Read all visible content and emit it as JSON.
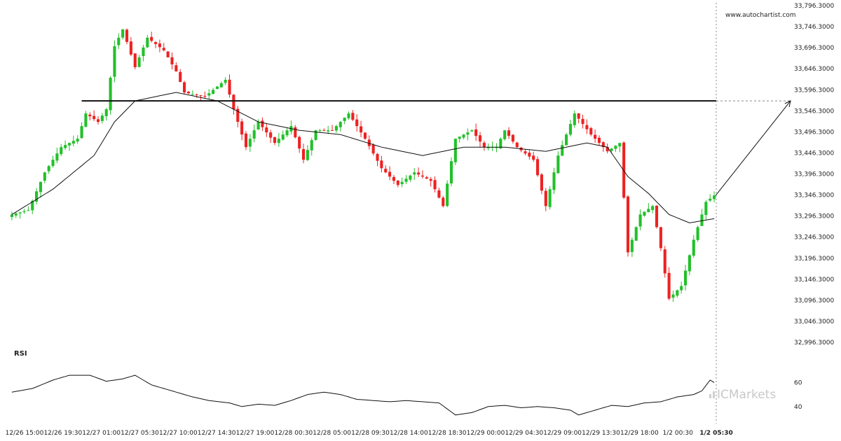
{
  "watermark": "www.autochartist.com",
  "brand": {
    "prefix": "IC",
    "suffix": "Markets"
  },
  "colors": {
    "up": "#22c02a",
    "down": "#ee2222",
    "line": "#111111",
    "guide": "#888888",
    "text": "#222222"
  },
  "chart_data": [
    {
      "type": "candlestick",
      "series_name": "",
      "resistance_level": 33570,
      "projected_target": 33570,
      "ylim": [
        32996.3,
        33796.3
      ],
      "y_ticks": [
        "33,796.3000",
        "33,746.3000",
        "33,696.3000",
        "33,646.3000",
        "33,596.3000",
        "33,546.3000",
        "33,496.3000",
        "33,446.3000",
        "33,396.3000",
        "33,346.3000",
        "33,296.3000",
        "33,246.3000",
        "33,196.3000",
        "33,146.3000",
        "33,096.3000",
        "33,046.3000",
        "32,996.3000"
      ],
      "x_ticks": [
        "12/26 15:00",
        "12/26 19:30",
        "12/27 01:00",
        "12/27 05:30",
        "12/27 10:00",
        "12/27 14:30",
        "12/27 19:00",
        "12/28 00:30",
        "12/28 05:00",
        "12/28 09:30",
        "12/28 14:00",
        "12/28 18:30",
        "12/29 00:00",
        "12/29 04:30",
        "12/29 09:00",
        "12/29 13:30",
        "12/29 18:00",
        "1/2 00:30",
        "1/2 05:30"
      ],
      "current_label": "1/2 05:30",
      "anchors": [
        [
          0,
          33300
        ],
        [
          4,
          33310
        ],
        [
          8,
          33400
        ],
        [
          12,
          33460
        ],
        [
          16,
          33480
        ],
        [
          18,
          33540
        ],
        [
          21,
          33520
        ],
        [
          23,
          33550
        ],
        [
          25,
          33700
        ],
        [
          27,
          33740
        ],
        [
          30,
          33650
        ],
        [
          33,
          33720
        ],
        [
          37,
          33690
        ],
        [
          40,
          33640
        ],
        [
          42,
          33590
        ],
        [
          47,
          33580
        ],
        [
          52,
          33620
        ],
        [
          54,
          33550
        ],
        [
          57,
          33460
        ],
        [
          60,
          33520
        ],
        [
          64,
          33470
        ],
        [
          68,
          33510
        ],
        [
          71,
          33430
        ],
        [
          74,
          33500
        ],
        [
          78,
          33500
        ],
        [
          82,
          33540
        ],
        [
          86,
          33480
        ],
        [
          90,
          33410
        ],
        [
          94,
          33370
        ],
        [
          98,
          33400
        ],
        [
          102,
          33380
        ],
        [
          105,
          33320
        ],
        [
          108,
          33480
        ],
        [
          112,
          33500
        ],
        [
          115,
          33460
        ],
        [
          118,
          33460
        ],
        [
          120,
          33500
        ],
        [
          123,
          33460
        ],
        [
          127,
          33430
        ],
        [
          130,
          33320
        ],
        [
          133,
          33440
        ],
        [
          137,
          33540
        ],
        [
          141,
          33490
        ],
        [
          145,
          33450
        ],
        [
          148,
          33470
        ],
        [
          150,
          33210
        ],
        [
          153,
          33300
        ],
        [
          156,
          33320
        ],
        [
          158,
          33220
        ],
        [
          160,
          33100
        ],
        [
          163,
          33130
        ],
        [
          166,
          33240
        ],
        [
          169,
          33330
        ],
        [
          171,
          33345
        ]
      ],
      "ma_anchors": [
        [
          0,
          33300
        ],
        [
          10,
          33360
        ],
        [
          20,
          33440
        ],
        [
          25,
          33520
        ],
        [
          30,
          33570
        ],
        [
          40,
          33590
        ],
        [
          50,
          33570
        ],
        [
          60,
          33520
        ],
        [
          70,
          33500
        ],
        [
          80,
          33490
        ],
        [
          90,
          33460
        ],
        [
          100,
          33440
        ],
        [
          110,
          33460
        ],
        [
          120,
          33460
        ],
        [
          130,
          33450
        ],
        [
          140,
          33470
        ],
        [
          145,
          33460
        ],
        [
          150,
          33390
        ],
        [
          155,
          33350
        ],
        [
          160,
          33300
        ],
        [
          165,
          33280
        ],
        [
          171,
          33290
        ]
      ],
      "rsi": {
        "label": "RSI",
        "levels": [
          60,
          40
        ],
        "ylim": [
          30,
          80
        ],
        "anchors": [
          [
            0,
            52
          ],
          [
            5,
            55
          ],
          [
            10,
            62
          ],
          [
            14,
            66
          ],
          [
            19,
            66
          ],
          [
            23,
            61
          ],
          [
            27,
            63
          ],
          [
            30,
            66
          ],
          [
            34,
            58
          ],
          [
            39,
            53
          ],
          [
            44,
            48
          ],
          [
            48,
            45
          ],
          [
            53,
            43
          ],
          [
            56,
            40
          ],
          [
            60,
            42
          ],
          [
            64,
            41
          ],
          [
            68,
            45
          ],
          [
            72,
            50
          ],
          [
            76,
            52
          ],
          [
            80,
            50
          ],
          [
            84,
            46
          ],
          [
            88,
            45
          ],
          [
            92,
            44
          ],
          [
            96,
            45
          ],
          [
            100,
            44
          ],
          [
            104,
            43
          ],
          [
            106,
            38
          ],
          [
            108,
            33
          ],
          [
            112,
            35
          ],
          [
            116,
            40
          ],
          [
            120,
            41
          ],
          [
            124,
            39
          ],
          [
            128,
            40
          ],
          [
            132,
            39
          ],
          [
            136,
            37
          ],
          [
            138,
            33
          ],
          [
            142,
            37
          ],
          [
            146,
            41
          ],
          [
            150,
            40
          ],
          [
            154,
            43
          ],
          [
            158,
            44
          ],
          [
            162,
            48
          ],
          [
            166,
            50
          ],
          [
            168,
            53
          ],
          [
            170,
            62
          ],
          [
            171,
            60
          ]
        ]
      }
    }
  ]
}
